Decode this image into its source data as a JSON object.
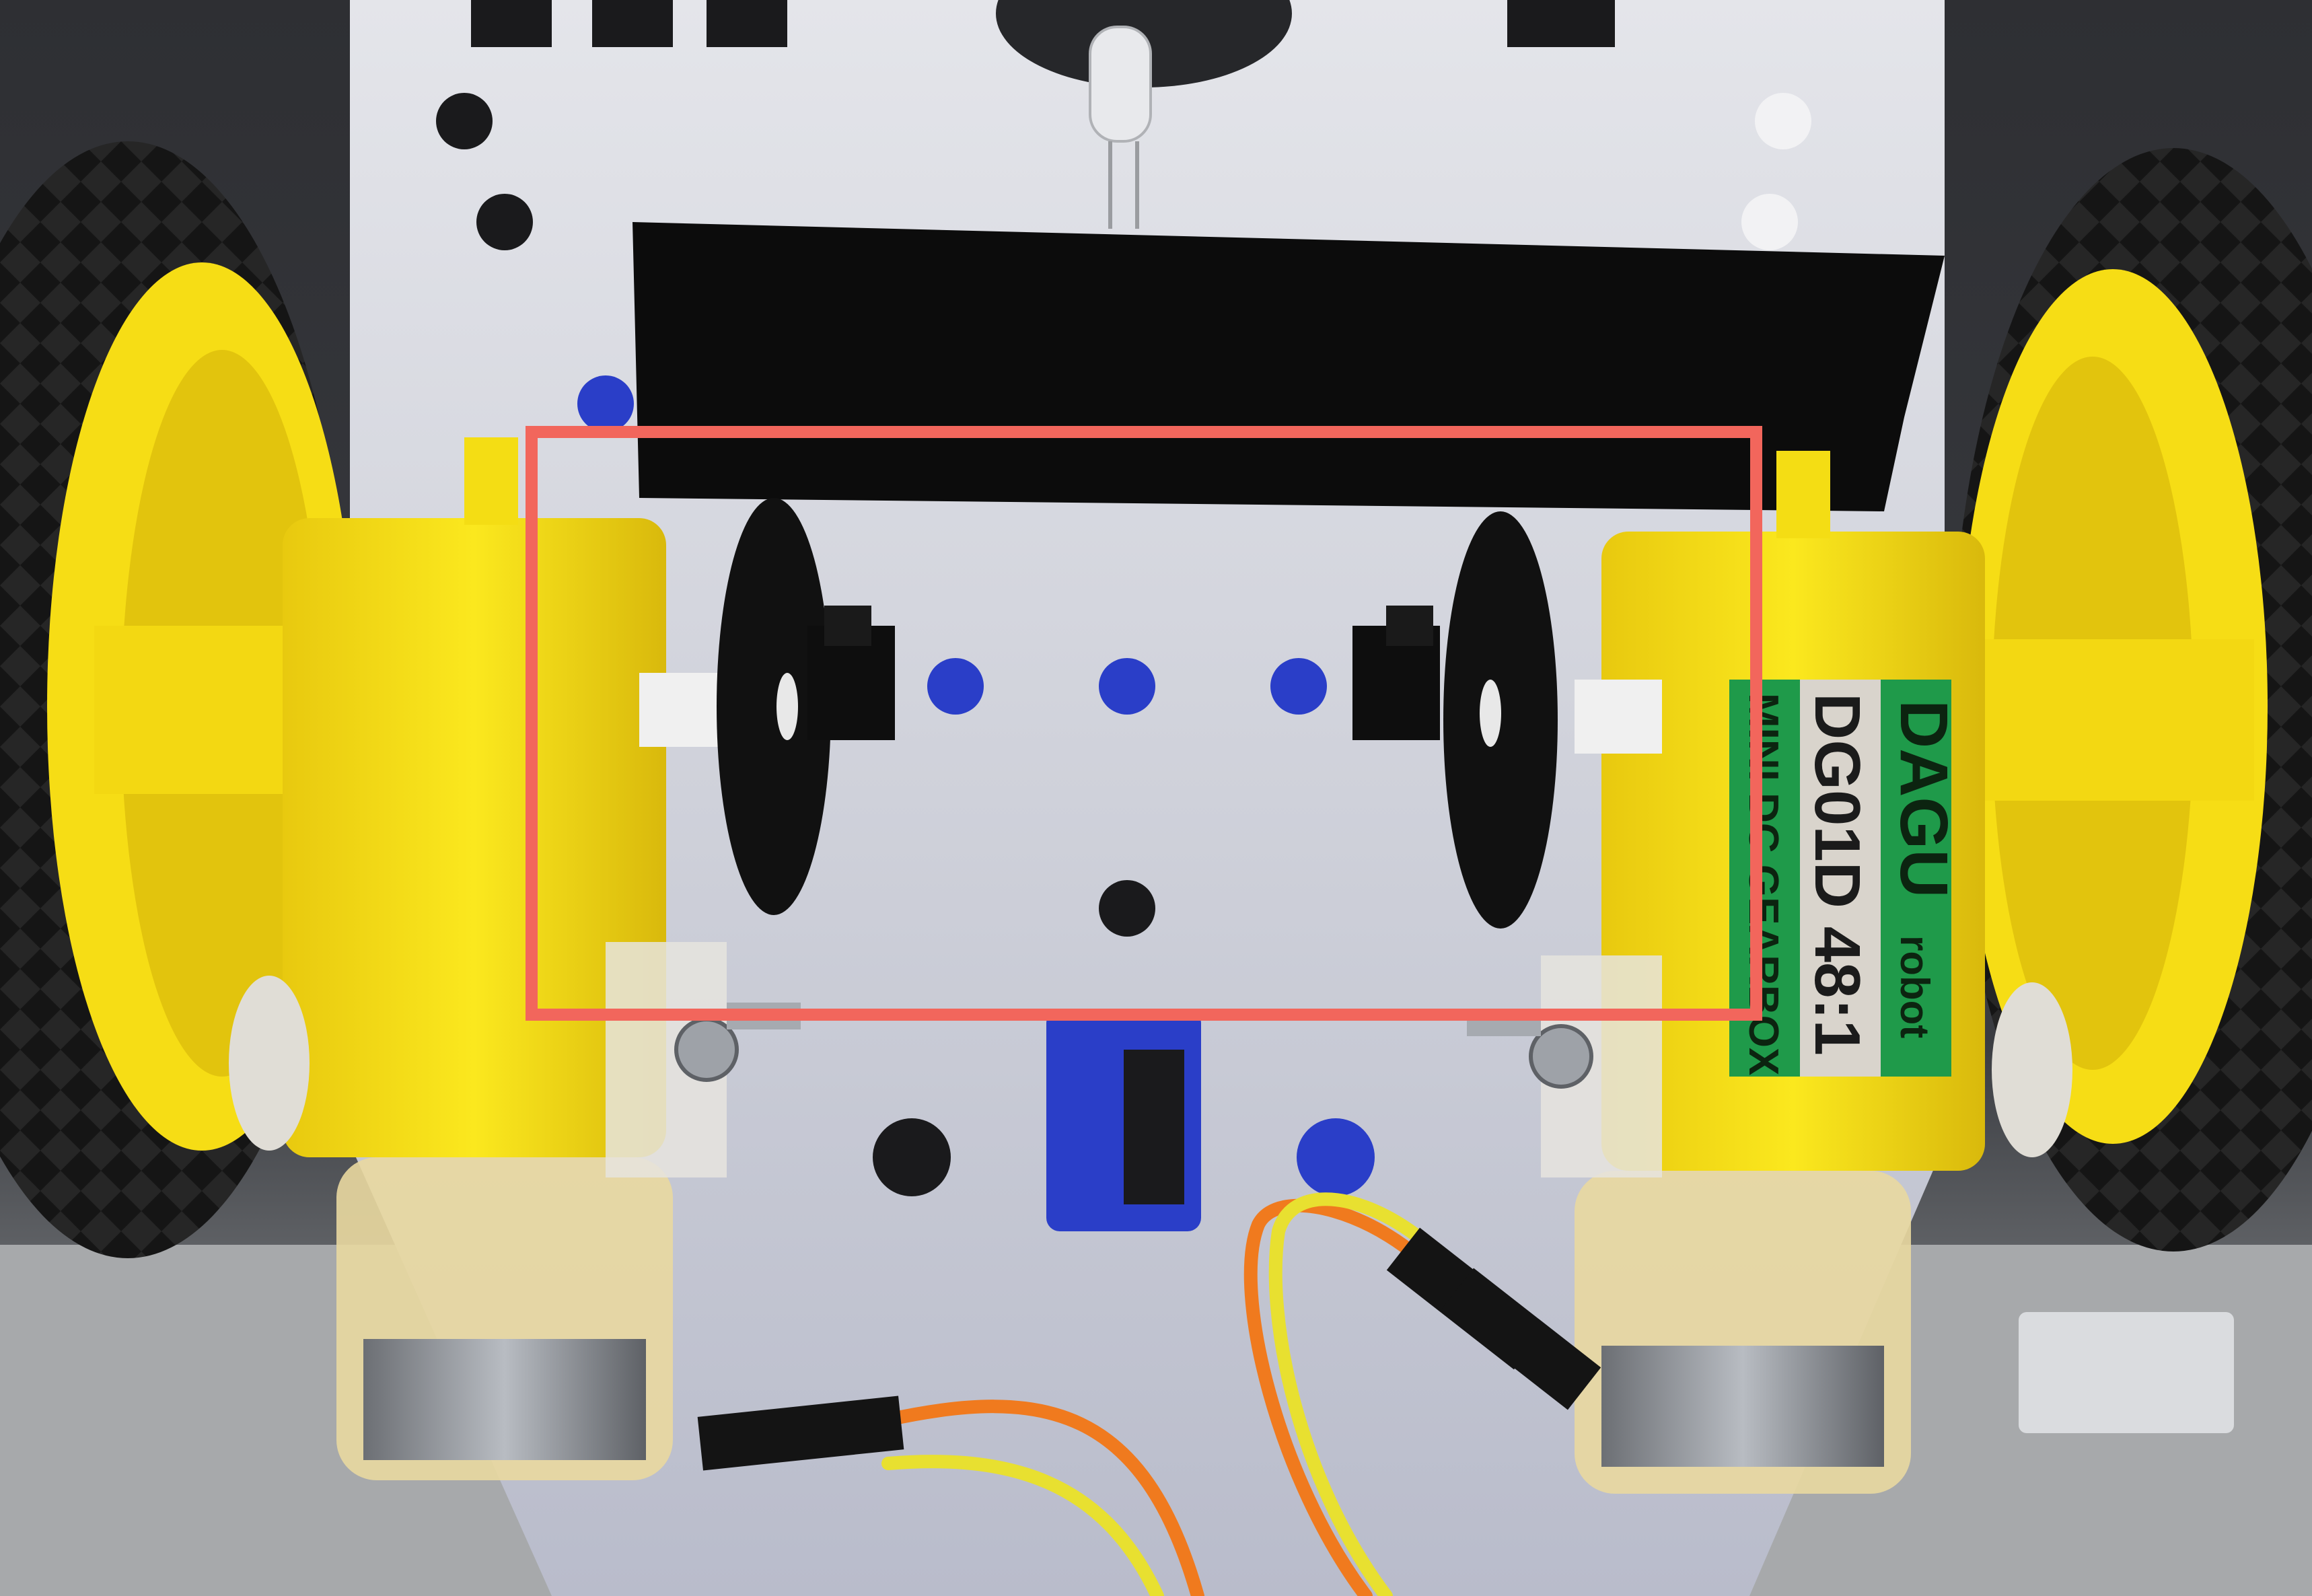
{
  "photo": {
    "subject": "robot-chassis-underside",
    "annotation_color": "#f2665c"
  },
  "motor_label": {
    "brand": "DAGU",
    "brand_suffix": "robot",
    "model": "DG01D 48:1",
    "line3": "MINI DC GEARBOX",
    "label_green": "#1f9a4a"
  },
  "colors": {
    "chassis": "#c9ccd6",
    "wheel_hub": "#f5de16",
    "tire": "#141414",
    "tape": "#0c0c0c",
    "wire_orange": "#f07a1e",
    "wire_yellow": "#e8e030",
    "chassis_blue": "#2a3ec8"
  }
}
